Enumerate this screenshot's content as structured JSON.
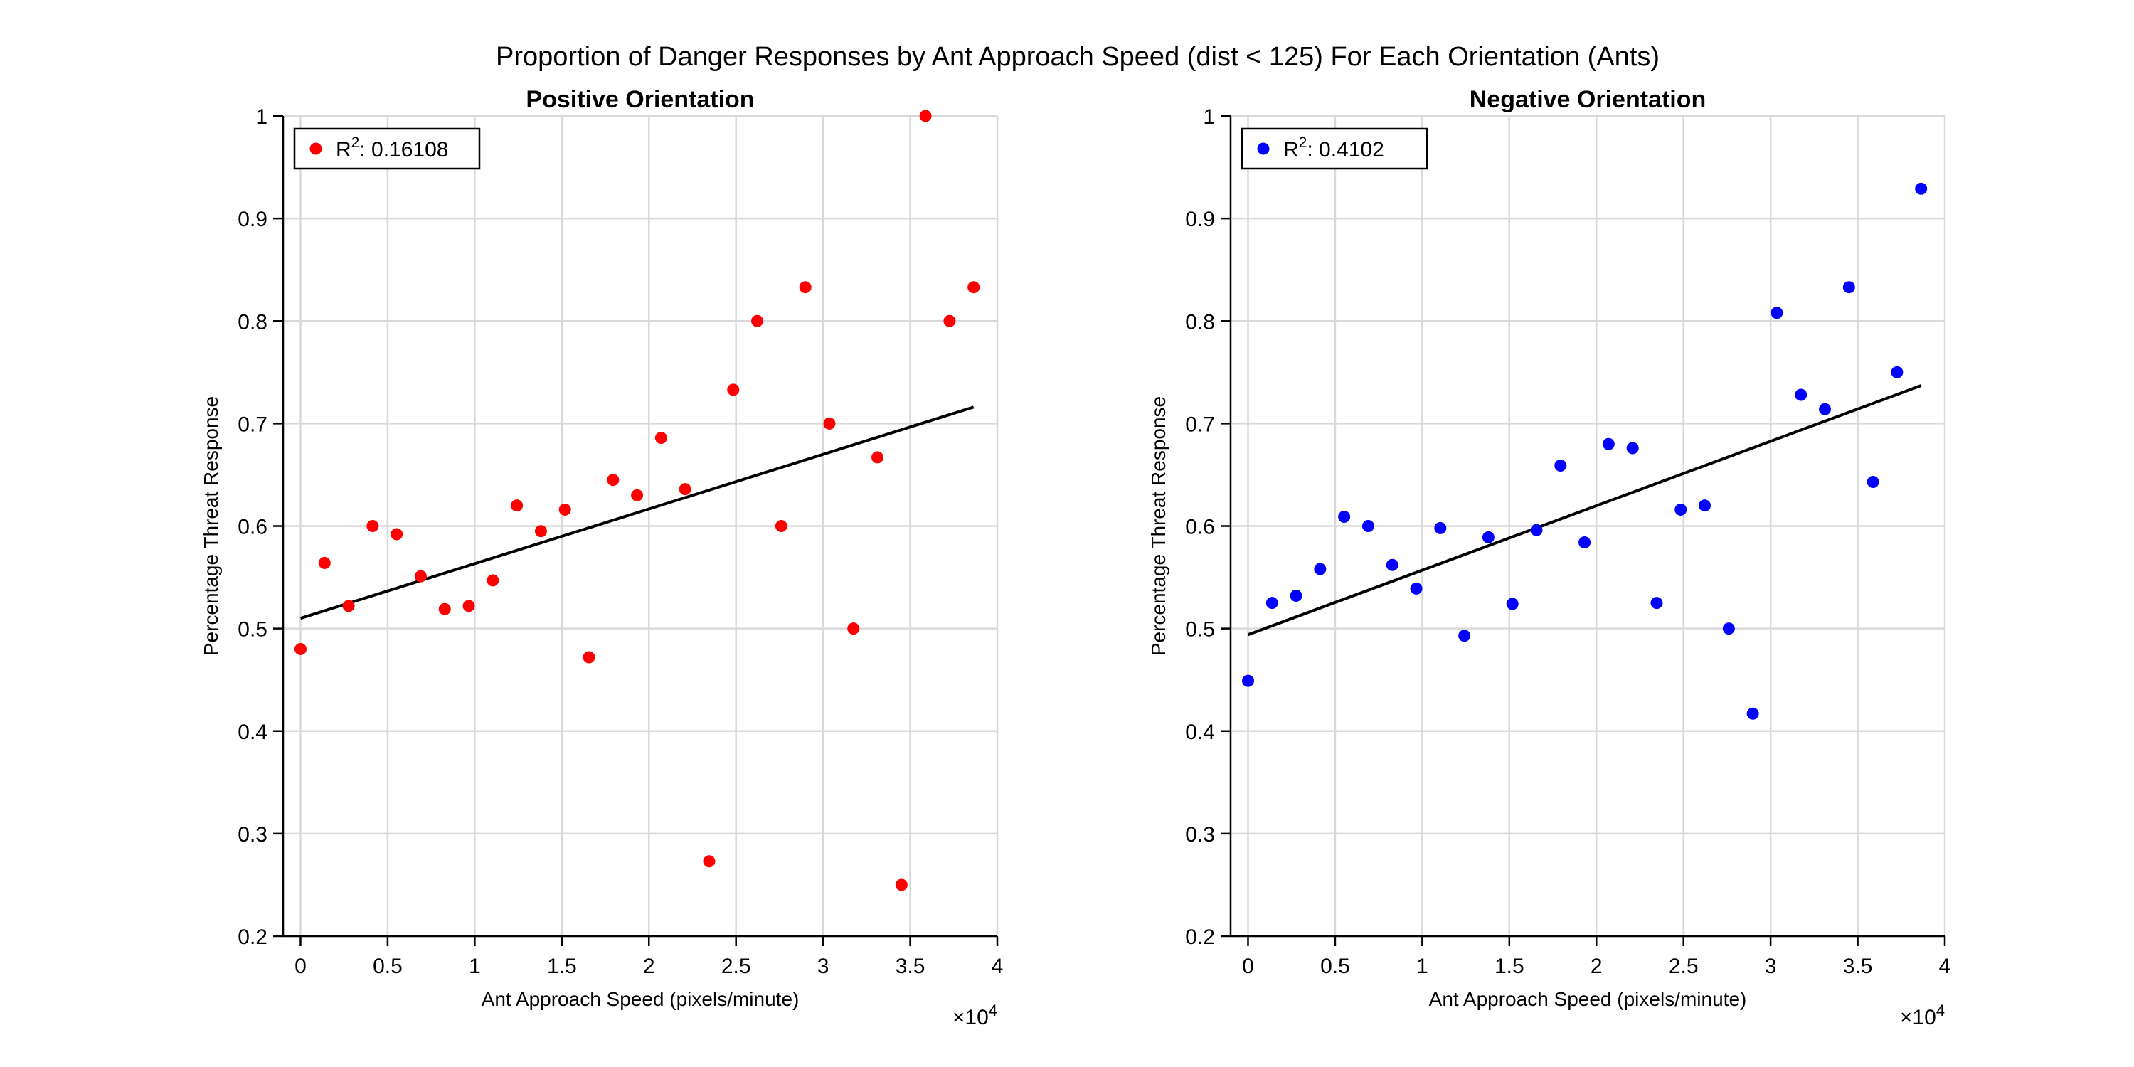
{
  "figure": {
    "title": "Proportion of Danger Responses by Ant Approach Speed (dist < 125) For Each Orientation (Ants)"
  },
  "chart_data": [
    {
      "type": "scatter",
      "title": "Positive Orientation",
      "xlabel": "Ant Approach Speed (pixels/minute)",
      "ylabel": "Percentage Threat Response",
      "x_exponent_label": "×10",
      "x_exponent": "4",
      "xlim": [
        -1000,
        40000
      ],
      "ylim": [
        0.2,
        1.0
      ],
      "x_ticks": [
        0,
        5000,
        10000,
        15000,
        20000,
        25000,
        30000,
        35000,
        40000
      ],
      "x_tick_labels": [
        "0",
        "0.5",
        "1",
        "1.5",
        "2",
        "2.5",
        "3",
        "3.5",
        "4"
      ],
      "y_ticks": [
        0.2,
        0.3,
        0.4,
        0.5,
        0.6,
        0.7,
        0.8,
        0.9,
        1.0
      ],
      "y_tick_labels": [
        "0.2",
        "0.3",
        "0.4",
        "0.5",
        "0.6",
        "0.7",
        "0.8",
        "0.9",
        "1"
      ],
      "grid": true,
      "legend_position": "top-left",
      "marker_color": "#ff0000",
      "series": [
        {
          "name": "R²: 0.16108",
          "legend_prefix": "R",
          "legend_sup": "2",
          "legend_suffix": ": 0.16108",
          "x": [
            0,
            1380,
            2760,
            4140,
            5520,
            6900,
            8280,
            9660,
            11040,
            12420,
            13800,
            15180,
            16560,
            17940,
            19320,
            20700,
            22080,
            23460,
            24840,
            26220,
            27600,
            28980,
            30360,
            31740,
            33120,
            34500,
            35880,
            37260,
            38640
          ],
          "y": [
            0.48,
            0.564,
            0.522,
            0.6,
            0.592,
            0.551,
            0.519,
            0.522,
            0.547,
            0.62,
            0.595,
            0.616,
            0.472,
            0.645,
            0.63,
            0.686,
            0.636,
            0.273,
            0.733,
            0.8,
            0.6,
            0.833,
            0.7,
            0.5,
            0.667,
            0.25,
            1.0,
            0.8,
            0.833
          ]
        }
      ],
      "fit_line": {
        "x": [
          0,
          38640
        ],
        "y": [
          0.51,
          0.716
        ]
      }
    },
    {
      "type": "scatter",
      "title": "Negative Orientation",
      "xlabel": "Ant Approach Speed (pixels/minute)",
      "ylabel": "Percentage Threat Response",
      "x_exponent_label": "×10",
      "x_exponent": "4",
      "xlim": [
        -1000,
        40000
      ],
      "ylim": [
        0.2,
        1.0
      ],
      "x_ticks": [
        0,
        5000,
        10000,
        15000,
        20000,
        25000,
        30000,
        35000,
        40000
      ],
      "x_tick_labels": [
        "0",
        "0.5",
        "1",
        "1.5",
        "2",
        "2.5",
        "3",
        "3.5",
        "4"
      ],
      "y_ticks": [
        0.2,
        0.3,
        0.4,
        0.5,
        0.6,
        0.7,
        0.8,
        0.9,
        1.0
      ],
      "y_tick_labels": [
        "0.2",
        "0.3",
        "0.4",
        "0.5",
        "0.6",
        "0.7",
        "0.8",
        "0.9",
        "1"
      ],
      "grid": true,
      "legend_position": "top-left",
      "marker_color": "#0000ff",
      "series": [
        {
          "name": "R²: 0.4102",
          "legend_prefix": "R",
          "legend_sup": "2",
          "legend_suffix": ": 0.4102",
          "x": [
            0,
            1380,
            2760,
            4140,
            5520,
            6900,
            8280,
            9660,
            11040,
            12420,
            13800,
            15180,
            16560,
            17940,
            19320,
            20700,
            22080,
            23460,
            24840,
            26220,
            27600,
            28980,
            30360,
            31740,
            33120,
            34500,
            35880,
            37260,
            38640
          ],
          "y": [
            0.449,
            0.525,
            0.532,
            0.558,
            0.609,
            0.6,
            0.562,
            0.539,
            0.598,
            0.493,
            0.589,
            0.524,
            0.596,
            0.659,
            0.584,
            0.68,
            0.676,
            0.525,
            0.616,
            0.62,
            0.5,
            0.417,
            0.808,
            0.728,
            0.714,
            0.833,
            0.643,
            0.75,
            0.929
          ]
        }
      ],
      "fit_line": {
        "x": [
          0,
          38640
        ],
        "y": [
          0.494,
          0.737
        ]
      }
    }
  ]
}
